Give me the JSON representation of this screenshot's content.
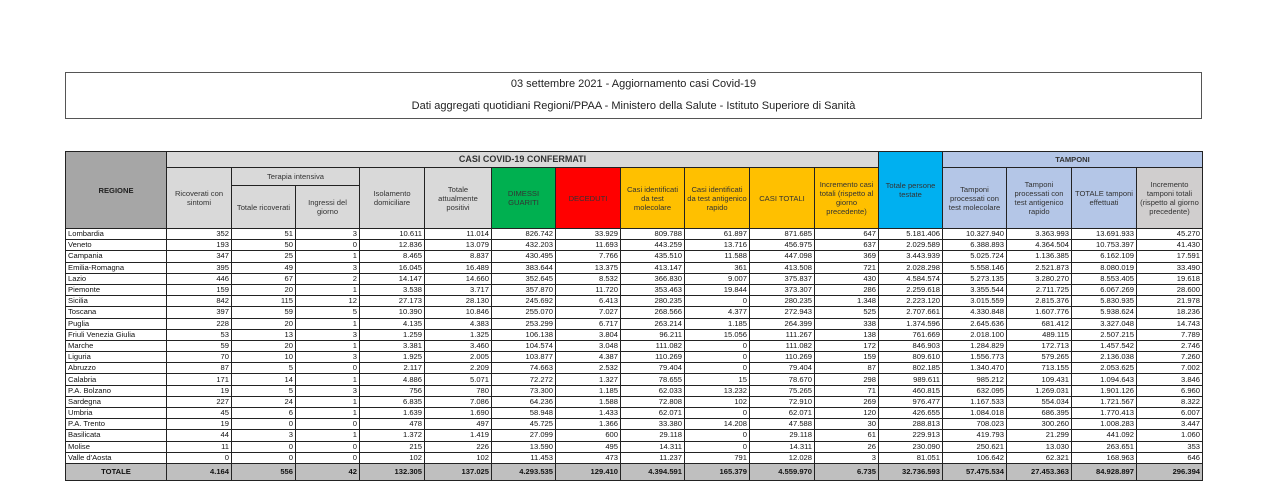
{
  "title": {
    "line1": "03 settembre 2021 - Aggiornamento casi Covid-19",
    "line2": "Dati aggregati quotidiani Regioni/PPAA - Ministero della Salute - Istituto Superiore di Sanità"
  },
  "headers": {
    "regione": "REGIONE",
    "casi_confermati": "CASI COVID-19 CONFERMATI",
    "persone_testate": "Totale persone testate",
    "tamponi": "TAMPONI",
    "ricoverati": "Ricoverati con sintomi",
    "terapia_intensiva": "Terapia intensiva",
    "totale_ricoverati": "Totale ricoverati",
    "ingressi": "Ingressi del giorno",
    "isolamento": "Isolamento domiciliare",
    "attualmente_positivi": "Totale attualmente positivi",
    "dimessi": "DIMESSI GUARITI",
    "deceduti": "DECEDUTI",
    "casi_molecolare": "Casi identificati da test molecolare",
    "casi_antigenico": "Casi identificati da test antigenico rapido",
    "casi_totali": "CASI TOTALI",
    "incremento_casi": "Incremento casi totali (rispetto al giorno precedente)",
    "tamponi_molecolare": "Tamponi processati con test molecolare",
    "tamponi_antigenico": "Tamponi processati con test antigenico rapido",
    "totale_tamponi": "TOTALE tamponi effettuati",
    "incremento_tamponi": "Incremento tamponi totali (rispetto al giorno precedente)"
  },
  "rows": [
    [
      "Lombardia",
      "352",
      "51",
      "3",
      "10.611",
      "11.014",
      "826.742",
      "33.929",
      "809.788",
      "61.897",
      "871.685",
      "647",
      "5.181.406",
      "10.327.940",
      "3.363.993",
      "13.691.933",
      "45.270"
    ],
    [
      "Veneto",
      "193",
      "50",
      "0",
      "12.836",
      "13.079",
      "432.203",
      "11.693",
      "443.259",
      "13.716",
      "456.975",
      "637",
      "2.029.589",
      "6.388.893",
      "4.364.504",
      "10.753.397",
      "41.430"
    ],
    [
      "Campania",
      "347",
      "25",
      "1",
      "8.465",
      "8.837",
      "430.495",
      "7.766",
      "435.510",
      "11.588",
      "447.098",
      "369",
      "3.443.939",
      "5.025.724",
      "1.136.385",
      "6.162.109",
      "17.591"
    ],
    [
      "Emilia-Romagna",
      "395",
      "49",
      "3",
      "16.045",
      "16.489",
      "383.644",
      "13.375",
      "413.147",
      "361",
      "413.508",
      "721",
      "2.028.298",
      "5.558.146",
      "2.521.873",
      "8.080.019",
      "33.490"
    ],
    [
      "Lazio",
      "446",
      "67",
      "2",
      "14.147",
      "14.660",
      "352.645",
      "8.532",
      "366.830",
      "9.007",
      "375.837",
      "430",
      "4.584.574",
      "5.273.135",
      "3.280.270",
      "8.553.405",
      "19.618"
    ],
    [
      "Piemonte",
      "159",
      "20",
      "1",
      "3.538",
      "3.717",
      "357.870",
      "11.720",
      "353.463",
      "19.844",
      "373.307",
      "286",
      "2.259.618",
      "3.355.544",
      "2.711.725",
      "6.067.269",
      "28.600"
    ],
    [
      "Sicilia",
      "842",
      "115",
      "12",
      "27.173",
      "28.130",
      "245.692",
      "6.413",
      "280.235",
      "0",
      "280.235",
      "1.348",
      "2.223.120",
      "3.015.559",
      "2.815.376",
      "5.830.935",
      "21.978"
    ],
    [
      "Toscana",
      "397",
      "59",
      "5",
      "10.390",
      "10.846",
      "255.070",
      "7.027",
      "268.566",
      "4.377",
      "272.943",
      "525",
      "2.707.661",
      "4.330.848",
      "1.607.776",
      "5.938.624",
      "18.236"
    ],
    [
      "Puglia",
      "228",
      "20",
      "1",
      "4.135",
      "4.383",
      "253.299",
      "6.717",
      "263.214",
      "1.185",
      "264.399",
      "338",
      "1.374.596",
      "2.645.636",
      "681.412",
      "3.327.048",
      "14.743"
    ],
    [
      "Friuli Venezia Giulia",
      "53",
      "13",
      "3",
      "1.259",
      "1.325",
      "106.138",
      "3.804",
      "96.211",
      "15.056",
      "111.267",
      "138",
      "761.669",
      "2.018.100",
      "489.115",
      "2.507.215",
      "7.789"
    ],
    [
      "Marche",
      "59",
      "20",
      "1",
      "3.381",
      "3.460",
      "104.574",
      "3.048",
      "111.082",
      "0",
      "111.082",
      "172",
      "846.903",
      "1.284.829",
      "172.713",
      "1.457.542",
      "2.746"
    ],
    [
      "Liguria",
      "70",
      "10",
      "3",
      "1.925",
      "2.005",
      "103.877",
      "4.387",
      "110.269",
      "0",
      "110.269",
      "159",
      "809.610",
      "1.556.773",
      "579.265",
      "2.136.038",
      "7.260"
    ],
    [
      "Abruzzo",
      "87",
      "5",
      "0",
      "2.117",
      "2.209",
      "74.663",
      "2.532",
      "79.404",
      "0",
      "79.404",
      "87",
      "802.185",
      "1.340.470",
      "713.155",
      "2.053.625",
      "7.002"
    ],
    [
      "Calabria",
      "171",
      "14",
      "1",
      "4.886",
      "5.071",
      "72.272",
      "1.327",
      "78.655",
      "15",
      "78.670",
      "298",
      "989.611",
      "985.212",
      "109.431",
      "1.094.643",
      "3.846"
    ],
    [
      "P.A. Bolzano",
      "19",
      "5",
      "3",
      "756",
      "780",
      "73.300",
      "1.185",
      "62.033",
      "13.232",
      "75.265",
      "71",
      "460.815",
      "632.095",
      "1.269.031",
      "1.901.126",
      "6.960"
    ],
    [
      "Sardegna",
      "227",
      "24",
      "1",
      "6.835",
      "7.086",
      "64.236",
      "1.588",
      "72.808",
      "102",
      "72.910",
      "269",
      "976.477",
      "1.167.533",
      "554.034",
      "1.721.567",
      "8.322"
    ],
    [
      "Umbria",
      "45",
      "6",
      "1",
      "1.639",
      "1.690",
      "58.948",
      "1.433",
      "62.071",
      "0",
      "62.071",
      "120",
      "426.655",
      "1.084.018",
      "686.395",
      "1.770.413",
      "6.007"
    ],
    [
      "P.A. Trento",
      "19",
      "0",
      "0",
      "478",
      "497",
      "45.725",
      "1.366",
      "33.380",
      "14.208",
      "47.588",
      "30",
      "288.813",
      "708.023",
      "300.260",
      "1.008.283",
      "3.447"
    ],
    [
      "Basilicata",
      "44",
      "3",
      "1",
      "1.372",
      "1.419",
      "27.099",
      "600",
      "29.118",
      "0",
      "29.118",
      "61",
      "229.913",
      "419.793",
      "21.299",
      "441.092",
      "1.060"
    ],
    [
      "Molise",
      "11",
      "0",
      "0",
      "215",
      "226",
      "13.590",
      "495",
      "14.311",
      "0",
      "14.311",
      "26",
      "230.090",
      "250.621",
      "13.030",
      "263.651",
      "353"
    ],
    [
      "Valle d'Aosta",
      "0",
      "0",
      "0",
      "102",
      "102",
      "11.453",
      "473",
      "11.237",
      "791",
      "12.028",
      "3",
      "81.051",
      "106.642",
      "62.321",
      "168.963",
      "646"
    ]
  ],
  "totale": [
    "TOTALE",
    "4.164",
    "556",
    "42",
    "132.305",
    "137.025",
    "4.293.535",
    "129.410",
    "4.394.591",
    "165.379",
    "4.559.970",
    "6.735",
    "32.736.593",
    "57.475.534",
    "27.453.363",
    "84.928.897",
    "296.394"
  ],
  "colors": {
    "dimessi": "#00b050",
    "deceduti": "#ff0000",
    "casi": "#ffc000",
    "persone": "#00b0f0",
    "tamponi": "#b4c6e7"
  }
}
